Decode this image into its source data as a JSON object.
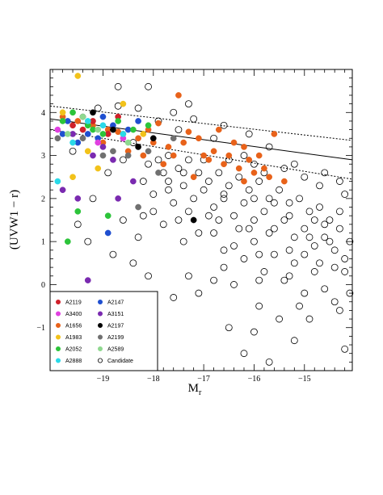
{
  "chart_data": {
    "type": "scatter",
    "title": "",
    "xlabel_main": "M",
    "xlabel_sub": "r",
    "ylabel": "(UVW1 − r)",
    "xlim": [
      -20.05,
      -14.05
    ],
    "ylim": [
      -2.0,
      5.0
    ],
    "xticks": [
      -19,
      -18,
      -17,
      -16,
      -15
    ],
    "xtick_labels": [
      "−19",
      "−18",
      "−17",
      "−16",
      "−15"
    ],
    "yticks": [
      -1,
      0,
      1,
      2,
      3,
      4
    ],
    "ytick_labels": [
      "−1",
      "0",
      "1",
      "2",
      "3",
      "4"
    ],
    "grid": false,
    "legend_placement": "bottom-left",
    "legend": [
      {
        "name": "A2119",
        "color": "#d0202a",
        "filled": true
      },
      {
        "name": "A2147",
        "color": "#1f4fd0",
        "filled": true
      },
      {
        "name": "A3400",
        "color": "#e040e0",
        "filled": true
      },
      {
        "name": "A3151",
        "color": "#7a2ab0",
        "filled": true
      },
      {
        "name": "A1656",
        "color": "#e8621a",
        "filled": true
      },
      {
        "name": "A2197",
        "color": "#000000",
        "filled": true
      },
      {
        "name": "A1983",
        "color": "#f2c21a",
        "filled": true
      },
      {
        "name": "A2199",
        "color": "#707070",
        "filled": true
      },
      {
        "name": "A2052",
        "color": "#2cc43a",
        "filled": true
      },
      {
        "name": "A2589",
        "color": "#8fd88f",
        "filled": true
      },
      {
        "name": "A2888",
        "color": "#2ad9e8",
        "filled": true
      },
      {
        "name": "Candidate",
        "color": "#000000",
        "filled": false
      }
    ],
    "fit_lines": [
      {
        "style": "solid",
        "x": [
          -20.05,
          -14.05
        ],
        "y": [
          3.85,
          2.9
        ]
      },
      {
        "style": "dotted",
        "x": [
          -20.05,
          -14.05
        ],
        "y": [
          4.15,
          3.35
        ]
      },
      {
        "style": "dotted",
        "x": [
          -20.05,
          -14.05
        ],
        "y": [
          3.6,
          2.45
        ]
      }
    ],
    "filled_series": [
      {
        "name": "A1656",
        "color": "#e8621a",
        "points": [
          [
            -19.8,
            3.9
          ],
          [
            -19.5,
            3.8
          ],
          [
            -19.2,
            3.7
          ],
          [
            -18.9,
            3.6
          ],
          [
            -18.6,
            3.5
          ],
          [
            -18.3,
            3.4
          ],
          [
            -18.0,
            3.3
          ],
          [
            -17.7,
            3.2
          ],
          [
            -17.4,
            3.3
          ],
          [
            -17.1,
            3.4
          ],
          [
            -16.8,
            3.1
          ],
          [
            -16.5,
            3.0
          ],
          [
            -16.2,
            3.2
          ],
          [
            -15.9,
            3.0
          ],
          [
            -15.6,
            3.5
          ],
          [
            -17.5,
            4.4
          ],
          [
            -17.3,
            3.55
          ],
          [
            -17.0,
            3.0
          ],
          [
            -16.9,
            2.9
          ],
          [
            -16.6,
            2.8
          ],
          [
            -16.3,
            2.7
          ],
          [
            -16.0,
            2.6
          ],
          [
            -15.7,
            2.5
          ],
          [
            -15.4,
            2.4
          ],
          [
            -17.8,
            2.8
          ],
          [
            -18.2,
            3.0
          ],
          [
            -18.5,
            3.1
          ],
          [
            -17.2,
            2.5
          ],
          [
            -18.7,
            3.55
          ],
          [
            -16.4,
            3.3
          ],
          [
            -16.1,
            2.9
          ],
          [
            -15.8,
            2.7
          ],
          [
            -17.6,
            3.0
          ],
          [
            -16.7,
            3.6
          ],
          [
            -18.1,
            3.6
          ],
          [
            -19.0,
            3.3
          ],
          [
            -17.9,
            3.75
          ],
          [
            -16.2,
            2.4
          ]
        ]
      },
      {
        "name": "A2119",
        "color": "#d0202a",
        "points": [
          [
            -19.6,
            3.7
          ],
          [
            -19.2,
            3.8
          ],
          [
            -18.9,
            3.5
          ],
          [
            -18.7,
            3.9
          ],
          [
            -19.4,
            3.6
          ]
        ]
      },
      {
        "name": "A2147",
        "color": "#1f4fd0",
        "points": [
          [
            -19.7,
            3.8
          ],
          [
            -19.3,
            3.5
          ],
          [
            -19.0,
            3.9
          ],
          [
            -18.8,
            3.7
          ],
          [
            -18.5,
            3.6
          ],
          [
            -19.5,
            3.3
          ],
          [
            -18.3,
            3.8
          ],
          [
            -19.1,
            3.4
          ],
          [
            -19.8,
            3.5
          ],
          [
            -18.9,
            1.2
          ]
        ]
      },
      {
        "name": "A3400",
        "color": "#e040e0",
        "points": [
          [
            -19.9,
            3.6
          ],
          [
            -19.1,
            3.3
          ],
          [
            -18.6,
            3.4
          ]
        ]
      },
      {
        "name": "A3151",
        "color": "#7a2ab0",
        "points": [
          [
            -19.6,
            3.5
          ],
          [
            -19.0,
            3.2
          ],
          [
            -18.8,
            2.9
          ],
          [
            -19.8,
            2.2
          ],
          [
            -19.5,
            2.0
          ],
          [
            -19.3,
            0.1
          ],
          [
            -18.4,
            2.4
          ],
          [
            -18.7,
            2.0
          ],
          [
            -19.2,
            3.0
          ]
        ]
      },
      {
        "name": "A2197",
        "color": "#000000",
        "points": [
          [
            -19.4,
            3.9
          ],
          [
            -18.8,
            3.6
          ],
          [
            -18.3,
            3.2
          ],
          [
            -18.0,
            3.4
          ],
          [
            -19.2,
            4.0
          ],
          [
            -17.2,
            1.5
          ]
        ]
      },
      {
        "name": "A1983",
        "color": "#f2c21a",
        "points": [
          [
            -19.5,
            4.85
          ],
          [
            -19.3,
            3.1
          ],
          [
            -19.8,
            4.0
          ],
          [
            -18.6,
            4.2
          ],
          [
            -18.2,
            3.5
          ],
          [
            -19.1,
            2.7
          ],
          [
            -19.6,
            2.5
          ]
        ]
      },
      {
        "name": "A2199",
        "color": "#707070",
        "points": [
          [
            -19.9,
            3.4
          ],
          [
            -19.4,
            3.4
          ],
          [
            -18.8,
            3.1
          ],
          [
            -18.5,
            3.0
          ],
          [
            -18.3,
            1.8
          ],
          [
            -17.9,
            2.6
          ],
          [
            -17.6,
            3.4
          ],
          [
            -18.1,
            3.1
          ],
          [
            -19.0,
            3.0
          ]
        ]
      },
      {
        "name": "A2052",
        "color": "#2cc43a",
        "points": [
          [
            -19.8,
            3.8
          ],
          [
            -19.6,
            4.0
          ],
          [
            -19.3,
            3.7
          ],
          [
            -19.0,
            3.5
          ],
          [
            -18.7,
            3.8
          ],
          [
            -18.4,
            3.6
          ],
          [
            -19.5,
            1.7
          ],
          [
            -19.7,
            1.0
          ],
          [
            -18.9,
            1.6
          ],
          [
            -19.2,
            3.6
          ],
          [
            -18.1,
            3.7
          ]
        ]
      },
      {
        "name": "A2589",
        "color": "#8fd88f",
        "points": [
          [
            -19.7,
            3.5
          ],
          [
            -19.4,
            3.9
          ],
          [
            -19.1,
            3.6
          ],
          [
            -18.5,
            3.3
          ]
        ]
      },
      {
        "name": "A2888",
        "color": "#2ad9e8",
        "points": [
          [
            -19.9,
            2.4
          ],
          [
            -19.6,
            3.3
          ],
          [
            -19.3,
            3.8
          ],
          [
            -18.6,
            3.5
          ],
          [
            -19.0,
            3.7
          ]
        ]
      }
    ],
    "candidate_points": [
      [
        -18.6,
        1.5
      ],
      [
        -18.2,
        2.4
      ],
      [
        -18.0,
        2.1
      ],
      [
        -17.8,
        2.6
      ],
      [
        -17.6,
        1.9
      ],
      [
        -17.4,
        2.3
      ],
      [
        -17.2,
        2.0
      ],
      [
        -17.0,
        2.2
      ],
      [
        -16.8,
        1.8
      ],
      [
        -16.6,
        2.1
      ],
      [
        -16.4,
        1.6
      ],
      [
        -16.2,
        1.9
      ],
      [
        -16.0,
        1.5
      ],
      [
        -15.8,
        1.7
      ],
      [
        -15.6,
        1.3
      ],
      [
        -15.4,
        1.5
      ],
      [
        -15.2,
        1.1
      ],
      [
        -15.0,
        1.3
      ],
      [
        -14.8,
        0.9
      ],
      [
        -14.6,
        1.1
      ],
      [
        -14.4,
        0.8
      ],
      [
        -14.2,
        0.6
      ],
      [
        -17.9,
        2.9
      ],
      [
        -17.7,
        3.0
      ],
      [
        -17.5,
        2.7
      ],
      [
        -17.3,
        2.9
      ],
      [
        -17.1,
        2.6
      ],
      [
        -16.9,
        2.4
      ],
      [
        -16.7,
        2.6
      ],
      [
        -16.5,
        2.3
      ],
      [
        -16.3,
        2.5
      ],
      [
        -16.1,
        2.2
      ],
      [
        -15.9,
        2.4
      ],
      [
        -15.7,
        2.0
      ],
      [
        -15.5,
        2.2
      ],
      [
        -15.3,
        1.9
      ],
      [
        -15.1,
        2.0
      ],
      [
        -14.9,
        1.7
      ],
      [
        -14.7,
        1.8
      ],
      [
        -14.5,
        1.5
      ],
      [
        -14.3,
        1.3
      ],
      [
        -14.1,
        1.0
      ],
      [
        -16.8,
        1.2
      ],
      [
        -16.4,
        0.9
      ],
      [
        -16.0,
        1.0
      ],
      [
        -15.6,
        0.7
      ],
      [
        -15.2,
        0.5
      ],
      [
        -14.8,
        0.3
      ],
      [
        -14.4,
        0.4
      ],
      [
        -16.2,
        0.6
      ],
      [
        -15.8,
        0.3
      ],
      [
        -15.4,
        0.1
      ],
      [
        -15.0,
        -0.2
      ],
      [
        -14.6,
        -0.1
      ],
      [
        -17.3,
        0.2
      ],
      [
        -16.6,
        0.4
      ],
      [
        -15.9,
        -0.5
      ],
      [
        -15.5,
        -0.8
      ],
      [
        -14.9,
        -0.8
      ],
      [
        -14.3,
        -0.6
      ],
      [
        -14.2,
        -1.5
      ],
      [
        -16.0,
        -1.1
      ],
      [
        -16.5,
        -1.0
      ],
      [
        -15.2,
        -1.3
      ],
      [
        -17.4,
        1.0
      ],
      [
        -17.8,
        1.4
      ],
      [
        -18.3,
        1.1
      ],
      [
        -18.4,
        0.5
      ],
      [
        -17.1,
        -0.2
      ],
      [
        -16.4,
        0.0
      ],
      [
        -19.3,
        1.0
      ],
      [
        -18.5,
        -0.8
      ],
      [
        -16.0,
        2.8
      ],
      [
        -16.2,
        3.0
      ],
      [
        -15.7,
        3.2
      ],
      [
        -16.5,
        2.9
      ],
      [
        -17.0,
        2.9
      ],
      [
        -17.9,
        3.8
      ],
      [
        -17.6,
        4.0
      ],
      [
        -17.2,
        3.85
      ],
      [
        -16.8,
        3.4
      ],
      [
        -17.5,
        3.6
      ],
      [
        -18.3,
        4.1
      ],
      [
        -18.7,
        4.15
      ],
      [
        -19.1,
        4.1
      ],
      [
        -19.6,
        3.1
      ],
      [
        -18.9,
        2.6
      ],
      [
        -18.4,
        3.3
      ],
      [
        -18.1,
        2.8
      ],
      [
        -17.7,
        2.4
      ],
      [
        -17.5,
        1.5
      ],
      [
        -16.7,
        1.5
      ],
      [
        -16.1,
        1.3
      ],
      [
        -15.3,
        1.6
      ],
      [
        -14.6,
        1.4
      ],
      [
        -14.2,
        2.1
      ],
      [
        -14.7,
        2.3
      ],
      [
        -15.0,
        2.5
      ],
      [
        -15.4,
        2.7
      ],
      [
        -15.8,
        2.6
      ],
      [
        -14.5,
        1.0
      ],
      [
        -14.9,
        1.1
      ],
      [
        -15.3,
        0.8
      ],
      [
        -15.7,
        1.2
      ],
      [
        -16.3,
        1.3
      ],
      [
        -16.9,
        1.6
      ],
      [
        -17.3,
        1.7
      ],
      [
        -17.7,
        2.2
      ],
      [
        -18.0,
        1.7
      ],
      [
        -18.8,
        0.7
      ],
      [
        -18.1,
        0.2
      ],
      [
        -17.6,
        -0.3
      ],
      [
        -16.8,
        0.1
      ],
      [
        -15.1,
        -0.5
      ],
      [
        -14.4,
        -0.4
      ],
      [
        -18.0,
        -1.2
      ],
      [
        -16.2,
        -1.6
      ],
      [
        -15.7,
        -1.8
      ],
      [
        -14.1,
        -0.2
      ],
      [
        -18.7,
        4.6
      ],
      [
        -18.1,
        4.6
      ],
      [
        -17.3,
        4.2
      ],
      [
        -16.6,
        3.7
      ],
      [
        -16.1,
        3.5
      ],
      [
        -15.2,
        2.8
      ],
      [
        -14.6,
        2.6
      ],
      [
        -14.3,
        2.4
      ],
      [
        -14.3,
        1.7
      ],
      [
        -14.8,
        1.5
      ],
      [
        -15.6,
        1.9
      ],
      [
        -16.0,
        2.0
      ],
      [
        -16.6,
        2.0
      ],
      [
        -17.4,
        2.6
      ],
      [
        -18.6,
        2.9
      ],
      [
        -19.2,
        2.0
      ],
      [
        -19.5,
        1.4
      ],
      [
        -18.2,
        1.6
      ],
      [
        -17.1,
        1.2
      ],
      [
        -16.6,
        0.8
      ],
      [
        -15.9,
        0.7
      ],
      [
        -15.0,
        0.7
      ],
      [
        -14.2,
        0.3
      ],
      [
        -14.7,
        0.5
      ],
      [
        -15.3,
        0.2
      ],
      [
        -15.9,
        0.1
      ]
    ]
  }
}
